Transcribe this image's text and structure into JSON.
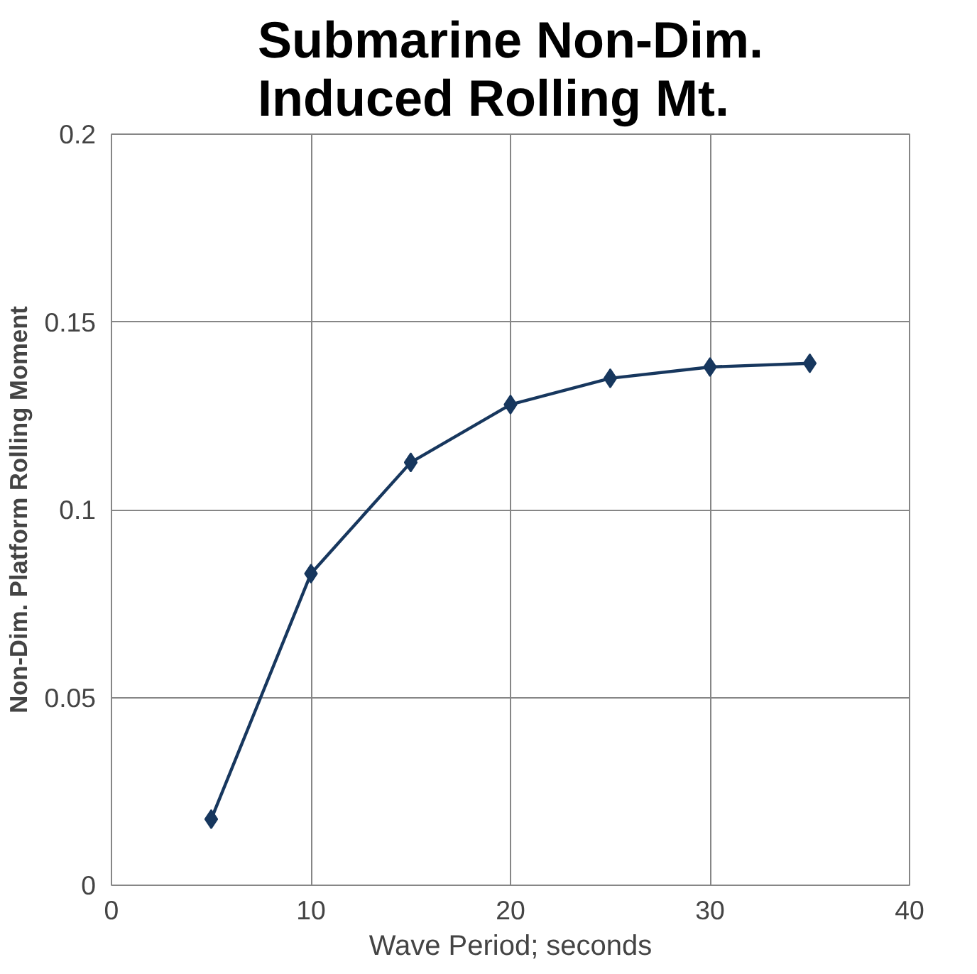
{
  "chart_data": {
    "type": "line",
    "title": "Submarine Non-Dim.\nInduced Rolling Mt.",
    "xlabel": "Wave Period; seconds",
    "ylabel": "Non-Dim. Platform Rolling Moment",
    "x": [
      5,
      10,
      15,
      20,
      25,
      30,
      35
    ],
    "series": [
      {
        "color": "#17375e",
        "values": [
          0.0176,
          0.083,
          0.1126,
          0.128,
          0.135,
          0.138,
          0.139
        ]
      }
    ],
    "xlim": [
      0,
      40
    ],
    "xticks": [
      0,
      10,
      20,
      30,
      40
    ],
    "ylim": [
      0,
      0.2
    ],
    "yticks": [
      0,
      0.05,
      0.1,
      0.15,
      0.2
    ],
    "grid": true,
    "marker": "diamond",
    "line_style": "solid"
  }
}
